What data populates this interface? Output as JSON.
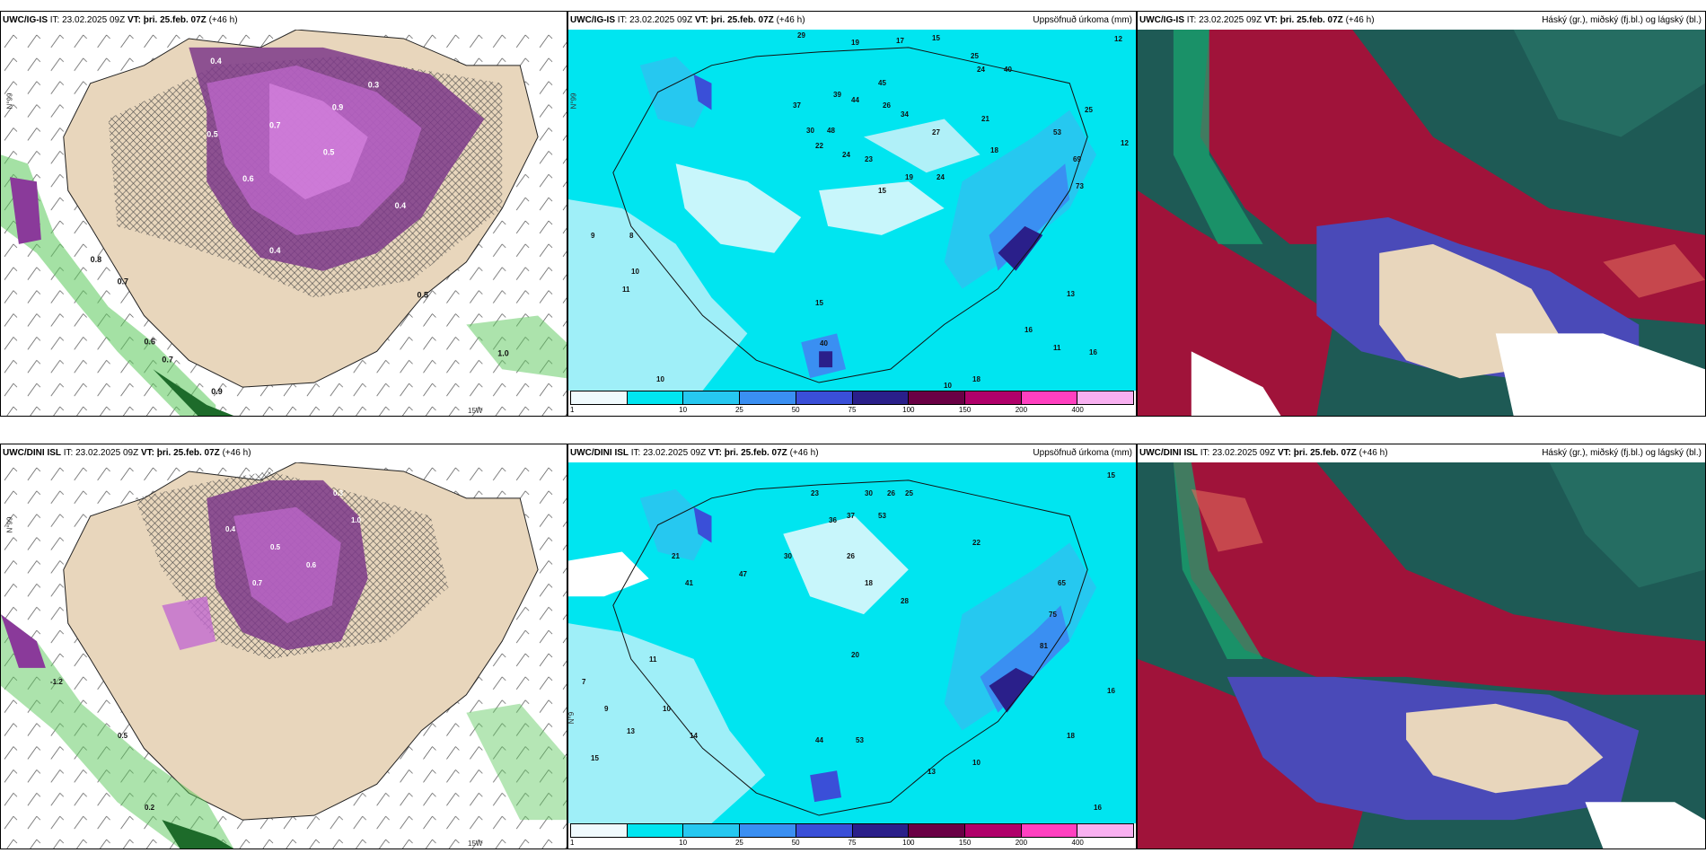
{
  "panels": {
    "top_left": {
      "model": "UWC/IG-IS",
      "it": "IT: 23.02.2025 09Z",
      "vt_label": "VT:",
      "vt": "þri. 25.feb. 07Z",
      "lead": "(+46 h)",
      "right_label": ""
    },
    "top_mid": {
      "model": "UWC/IG-IS",
      "it": "IT: 23.02.2025 09Z",
      "vt_label": "VT:",
      "vt": "þri. 25.feb. 07Z",
      "lead": "(+46 h)",
      "right_label": "Uppsöfnuð úrkoma (mm)"
    },
    "top_right": {
      "model": "UWC/IG-IS",
      "it": "IT: 23.02.2025 09Z",
      "vt_label": "VT:",
      "vt": "þri. 25.feb. 07Z",
      "lead": "(+46 h)",
      "right_label": "Háský (gr.), miðský (fj.bl.) og lágský (bl.)"
    },
    "bot_left": {
      "model": "UWC/DINI ISL",
      "it": "IT: 23.02.2025 09Z",
      "vt_label": "VT:",
      "vt": "þri. 25.feb. 07Z",
      "lead": "(+46 h)",
      "right_label": ""
    },
    "bot_mid": {
      "model": "UWC/DINI ISL",
      "it": "IT: 23.02.2025 09Z",
      "vt_label": "VT:",
      "vt": "þri. 25.feb. 07Z",
      "lead": "(+46 h)",
      "right_label": "Uppsöfnuð úrkoma (mm)"
    },
    "bot_right": {
      "model": "UWC/DINI ISL",
      "it": "IT: 23.02.2025 09Z",
      "vt_label": "VT:",
      "vt": "þri. 25.feb. 07Z",
      "lead": "(+46 h)",
      "right_label": "Háský (gr.), miðský (fj.bl.) og lágský (bl.)"
    }
  },
  "axis_labels": {
    "lat_top": "N°99",
    "lat_bot": "N°9",
    "lon_w": "25W",
    "lon_15": "15W",
    "lon_20": "20W"
  },
  "legend": {
    "ticks": [
      "1",
      "10",
      "25",
      "50",
      "75",
      "100",
      "150",
      "200",
      "400"
    ],
    "colors": [
      "#f0fafd",
      "#00e5f0",
      "#26c8f0",
      "#3a8ff2",
      "#3a4fd8",
      "#2a1f8a",
      "#6a0045",
      "#b0006a",
      "#ff40c0",
      "#f8b0f0"
    ]
  },
  "precip_values_top": [
    "29",
    "19",
    "17",
    "15",
    "12",
    "25",
    "24",
    "40",
    "37",
    "39",
    "44",
    "26",
    "34",
    "45",
    "30",
    "48",
    "22",
    "24",
    "23",
    "27",
    "21",
    "15",
    "19",
    "24",
    "18",
    "53",
    "69",
    "73",
    "25",
    "12",
    "16",
    "9",
    "8",
    "10",
    "11",
    "10",
    "15",
    "40",
    "10",
    "18",
    "11",
    "13",
    "16"
  ],
  "precip_values_bot": [
    "30",
    "26",
    "25",
    "15",
    "23",
    "36",
    "37",
    "53",
    "21",
    "41",
    "47",
    "30",
    "26",
    "28",
    "18",
    "20",
    "65",
    "75",
    "81",
    "22",
    "16",
    "11",
    "10",
    "7",
    "13",
    "14",
    "9",
    "44",
    "53",
    "10",
    "13",
    "16",
    "15",
    "18"
  ],
  "snow_values_top": [
    "0.3",
    "0.4",
    "0.5",
    "0.7",
    "0.6",
    "0.9",
    "0.4",
    "0.5",
    "0.3",
    "0.7",
    "0.8",
    "0.6",
    "0.5",
    "1.0",
    "0.4",
    "0.3"
  ],
  "snow_values_bot": [
    "0.3",
    "0.4",
    "0.5",
    "0.6",
    "0.7",
    "0.8",
    "0.5",
    "0.3",
    "0.4",
    "1.0",
    "-1.2",
    "0.5",
    "0.2"
  ],
  "colors": {
    "snow": "#b86ac8",
    "land": "#e8d6bc",
    "green": "#5ac85a",
    "precip": "#00e5f0",
    "cloud_high": "#a0133a",
    "cloud_mid": "#1e5a55",
    "cloud_low": "#4a4ab8"
  }
}
